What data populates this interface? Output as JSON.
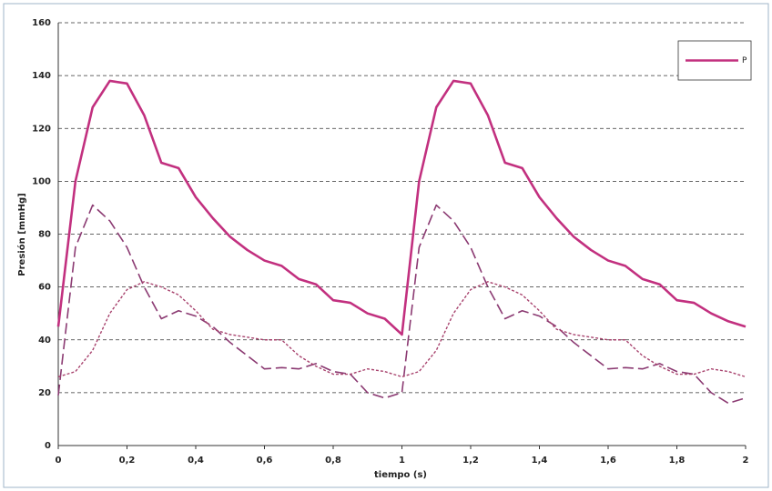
{
  "chart_data": {
    "type": "line",
    "x_label": "tiempo (s)",
    "y_label": "Presión [mmHg]",
    "x": [
      0,
      0.05,
      0.1,
      0.15,
      0.2,
      0.25,
      0.3,
      0.35,
      0.4,
      0.45,
      0.5,
      0.55,
      0.6,
      0.65,
      0.7,
      0.75,
      0.8,
      0.85,
      0.9,
      0.95,
      1,
      1.05,
      1.1,
      1.15,
      1.2,
      1.25,
      1.3,
      1.35,
      1.4,
      1.45,
      1.5,
      1.55,
      1.6,
      1.65,
      1.7,
      1.75,
      1.8,
      1.85,
      1.9,
      1.95,
      2
    ],
    "series": [
      {
        "name": "P",
        "color": "#c2307f",
        "style": "solid",
        "values": [
          45,
          100,
          128,
          138,
          137,
          125,
          107,
          105,
          94,
          86,
          79,
          74,
          70,
          68,
          63,
          61,
          55,
          54,
          50,
          48,
          42,
          100,
          128,
          138,
          137,
          125,
          107,
          105,
          94,
          86,
          79,
          74,
          70,
          68,
          63,
          61,
          55,
          54,
          50,
          47,
          45
        ]
      },
      {
        "color": "#8b3a72",
        "style": "dashed",
        "values": [
          19,
          75,
          91,
          85,
          75,
          60,
          48,
          51,
          49,
          45,
          39,
          34,
          29,
          29.5,
          29,
          31,
          28,
          27,
          20,
          18,
          20,
          75,
          91,
          85,
          75,
          60,
          48,
          51,
          49,
          45,
          39,
          34,
          29,
          29.5,
          29,
          31,
          28,
          27,
          20,
          16,
          18
        ]
      },
      {
        "color": "#a8436e",
        "style": "dotted",
        "values": [
          26,
          28,
          36,
          50,
          59,
          62,
          60,
          57,
          51,
          44,
          42,
          41,
          40,
          40,
          34,
          30,
          27,
          27,
          29,
          28,
          26,
          28,
          36,
          50,
          59,
          62,
          60,
          57,
          51,
          44,
          42,
          41,
          40,
          40,
          34,
          30,
          27,
          27,
          29,
          28,
          26
        ]
      }
    ],
    "xlim": [
      0,
      2
    ],
    "ylim": [
      0,
      160
    ],
    "xticks": [
      0,
      {
        "value": 0.2,
        "label": "0,2"
      },
      {
        "value": 0.4,
        "label": "0,4"
      },
      {
        "value": 0.6,
        "label": "0,6"
      },
      {
        "value": 0.8,
        "label": "0,8"
      },
      1,
      {
        "value": 1.2,
        "label": "1,2"
      },
      {
        "value": 1.4,
        "label": "1,4"
      },
      {
        "value": 1.6,
        "label": "1,6"
      },
      {
        "value": 1.8,
        "label": "1,8"
      },
      2
    ],
    "yticks": [
      0,
      20,
      40,
      60,
      80,
      100,
      120,
      140,
      160
    ],
    "grid": true,
    "legend": "upper right"
  }
}
